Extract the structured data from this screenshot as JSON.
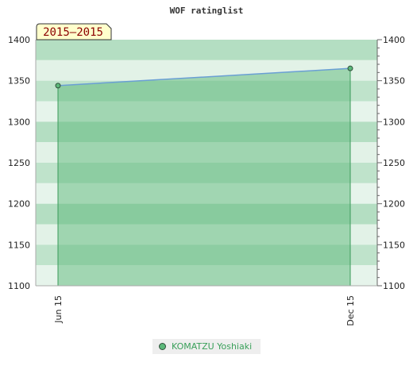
{
  "colors": {
    "band_dark": "#b4dec2",
    "band_light": "#e2f2e7",
    "area_fill": "#5cb87a",
    "line_color": "#6a9fd4",
    "badge_fill": "#ffffcc",
    "badge_text": "#8b0000",
    "legend_text": "#3aa05a"
  },
  "badge": {
    "label": "2015–2015"
  },
  "legend": {
    "icon": "circle-marker-icon"
  },
  "chart_data": {
    "type": "area",
    "title": "WOF ratinglist",
    "xlabel": "",
    "ylabel": "",
    "ylim": [
      1100,
      1400
    ],
    "y_ticks": [
      1100,
      1150,
      1200,
      1250,
      1300,
      1350,
      1400
    ],
    "y_tick_labels": [
      "1100",
      "1150",
      "1200",
      "1250",
      "1300",
      "1350",
      "1400"
    ],
    "x_tick_labels": [
      "Jun 15",
      "Dec 15"
    ],
    "y_axis_right": true,
    "grid": false,
    "legend_position": "bottom-center",
    "series": [
      {
        "name": "KOMATZU Yoshiaki",
        "x": [
          "Jun 15",
          "Dec 15"
        ],
        "values": [
          1344,
          1365
        ]
      }
    ]
  }
}
